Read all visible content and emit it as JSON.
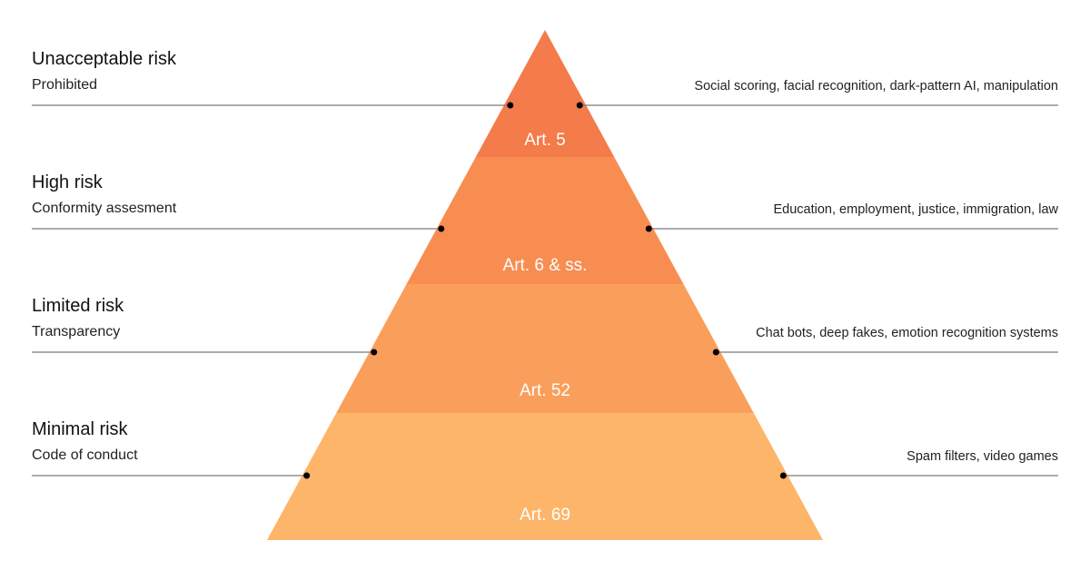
{
  "tiers": [
    {
      "title": "Unacceptable risk",
      "subtitle": "Prohibited",
      "article": "Art. 5",
      "examples": "Social scoring, facial recognition, dark-pattern AI, manipulation",
      "color": "#F47B4A"
    },
    {
      "title": "High risk",
      "subtitle": "Conformity assesment",
      "article": "Art. 6 & ss.",
      "examples": "Education, employment, justice, immigration, law",
      "color": "#F88D52"
    },
    {
      "title": "Limited risk",
      "subtitle": "Transparency",
      "article": "Art. 52",
      "examples": "Chat bots, deep fakes, emotion recognition systems",
      "color": "#FA9F5B"
    },
    {
      "title": "Minimal risk",
      "subtitle": "Code of conduct",
      "article": "Art. 69",
      "examples": "Spam filters, video games",
      "color": "#FDB56A"
    }
  ]
}
